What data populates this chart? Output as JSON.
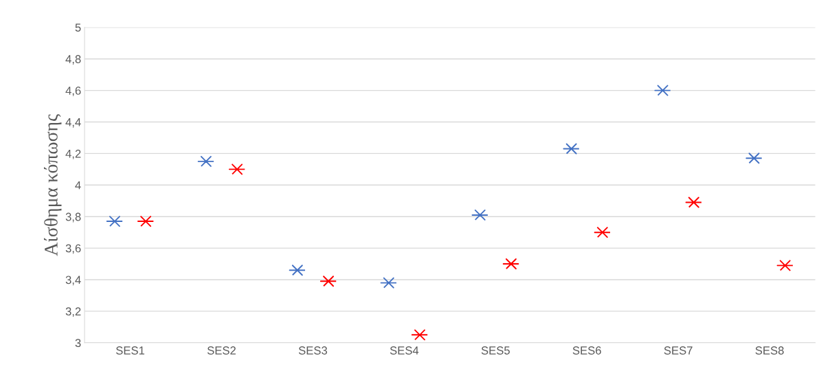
{
  "chart_data": {
    "type": "scatter",
    "ylabel": "Αίσθημα κόπωσης",
    "categories": [
      "SES1",
      "SES2",
      "SES3",
      "SES4",
      "SES5",
      "SES6",
      "SES7",
      "SES8"
    ],
    "series": [
      {
        "color": "#4472c4",
        "values": [
          3.77,
          4.15,
          3.46,
          3.38,
          3.81,
          4.23,
          4.6,
          4.17
        ]
      },
      {
        "color": "#ff0000",
        "values": [
          3.77,
          4.1,
          3.39,
          3.05,
          3.5,
          3.7,
          3.89,
          3.49
        ]
      }
    ],
    "ylim": [
      3,
      5
    ],
    "yticks": [
      3,
      {
        "value": 3.2,
        "label": "3,2"
      },
      {
        "value": 3.4,
        "label": "3,4"
      },
      {
        "value": 3.6,
        "label": "3,6"
      },
      {
        "value": 3.8,
        "label": "3,8"
      },
      4,
      {
        "value": 4.2,
        "label": "4,2"
      },
      {
        "value": 4.4,
        "label": "4,4"
      },
      {
        "value": 4.6,
        "label": "4,6"
      },
      {
        "value": 4.8,
        "label": "4,8"
      },
      5
    ],
    "grid": "y",
    "marker": "cross",
    "legend": false
  }
}
